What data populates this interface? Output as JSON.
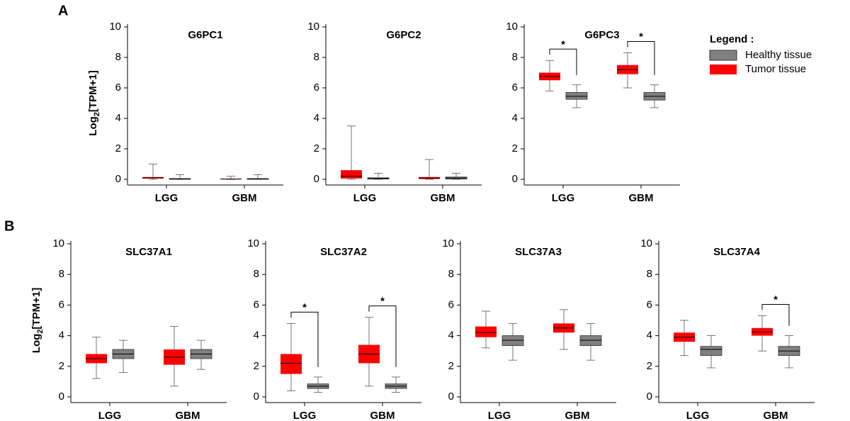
{
  "panel_labels": [
    "A",
    "B"
  ],
  "legend": {
    "title": "Legend :"
  },
  "chart_data": [
    {
      "type": "box",
      "title": "G6PC1",
      "ylabel": "Log2[TPM+1]",
      "categories": [
        "LGG",
        "GBM"
      ],
      "ylim": [
        0,
        10
      ],
      "yticks": [
        0,
        2,
        4,
        6,
        8,
        10
      ],
      "series": [
        {
          "name": "Tumor tissue",
          "color": "#ff0000",
          "values": [
            {
              "min": 0,
              "q1": 0.05,
              "median": 0.1,
              "q3": 0.15,
              "max": 1.0
            },
            {
              "min": 0,
              "q1": 0.01,
              "median": 0.02,
              "q3": 0.05,
              "max": 0.2
            }
          ]
        },
        {
          "name": "Healthy tissue",
          "color": "#808080",
          "values": [
            {
              "min": 0,
              "q1": 0.01,
              "median": 0.02,
              "q3": 0.05,
              "max": 0.3
            },
            {
              "min": 0,
              "q1": 0.01,
              "median": 0.02,
              "q3": 0.05,
              "max": 0.3
            }
          ]
        }
      ],
      "annotations": []
    },
    {
      "type": "box",
      "title": "G6PC2",
      "categories": [
        "LGG",
        "GBM"
      ],
      "ylim": [
        0,
        10
      ],
      "yticks": [
        0,
        2,
        4,
        6,
        8,
        10
      ],
      "series": [
        {
          "name": "Tumor tissue",
          "color": "#ff0000",
          "values": [
            {
              "min": 0,
              "q1": 0.05,
              "median": 0.2,
              "q3": 0.6,
              "max": 3.5
            },
            {
              "min": 0,
              "q1": 0.02,
              "median": 0.08,
              "q3": 0.15,
              "max": 1.3
            }
          ]
        },
        {
          "name": "Healthy tissue",
          "color": "#808080",
          "values": [
            {
              "min": 0,
              "q1": 0.02,
              "median": 0.05,
              "q3": 0.1,
              "max": 0.4
            },
            {
              "min": 0,
              "q1": 0.02,
              "median": 0.08,
              "q3": 0.15,
              "max": 0.4
            }
          ]
        }
      ],
      "annotations": []
    },
    {
      "type": "box",
      "title": "G6PC3",
      "categories": [
        "LGG",
        "GBM"
      ],
      "ylim": [
        0,
        10
      ],
      "yticks": [
        0,
        2,
        4,
        6,
        8,
        10
      ],
      "series": [
        {
          "name": "Tumor tissue",
          "color": "#ff0000",
          "values": [
            {
              "min": 5.8,
              "q1": 6.5,
              "median": 6.75,
              "q3": 7.0,
              "max": 7.8
            },
            {
              "min": 6.0,
              "q1": 6.9,
              "median": 7.2,
              "q3": 7.5,
              "max": 8.3
            }
          ]
        },
        {
          "name": "Healthy tissue",
          "color": "#808080",
          "values": [
            {
              "min": 4.7,
              "q1": 5.25,
              "median": 5.45,
              "q3": 5.7,
              "max": 6.2
            },
            {
              "min": 4.7,
              "q1": 5.2,
              "median": 5.45,
              "q3": 5.7,
              "max": 6.2
            }
          ]
        }
      ],
      "annotations": [
        {
          "x": "LGG",
          "text": "*"
        },
        {
          "x": "GBM",
          "text": "*"
        }
      ]
    },
    {
      "type": "box",
      "title": "SLC37A1",
      "ylabel": "Log2[TPM+1]",
      "categories": [
        "LGG",
        "GBM"
      ],
      "ylim": [
        0,
        10
      ],
      "yticks": [
        0,
        2,
        4,
        6,
        8,
        10
      ],
      "series": [
        {
          "name": "Tumor tissue",
          "color": "#ff0000",
          "values": [
            {
              "min": 1.2,
              "q1": 2.2,
              "median": 2.5,
              "q3": 2.8,
              "max": 3.9
            },
            {
              "min": 0.7,
              "q1": 2.1,
              "median": 2.6,
              "q3": 3.1,
              "max": 4.6
            }
          ]
        },
        {
          "name": "Healthy tissue",
          "color": "#808080",
          "values": [
            {
              "min": 1.6,
              "q1": 2.5,
              "median": 2.8,
              "q3": 3.1,
              "max": 3.7
            },
            {
              "min": 1.8,
              "q1": 2.5,
              "median": 2.8,
              "q3": 3.1,
              "max": 3.7
            }
          ]
        }
      ],
      "annotations": []
    },
    {
      "type": "box",
      "title": "SLC37A2",
      "categories": [
        "LGG",
        "GBM"
      ],
      "ylim": [
        0,
        10
      ],
      "yticks": [
        0,
        2,
        4,
        6,
        8,
        10
      ],
      "series": [
        {
          "name": "Tumor tissue",
          "color": "#ff0000",
          "values": [
            {
              "min": 0.4,
              "q1": 1.5,
              "median": 2.2,
              "q3": 2.8,
              "max": 4.8
            },
            {
              "min": 0.7,
              "q1": 2.2,
              "median": 2.8,
              "q3": 3.4,
              "max": 5.2
            }
          ]
        },
        {
          "name": "Healthy tissue",
          "color": "#808080",
          "values": [
            {
              "min": 0.3,
              "q1": 0.55,
              "median": 0.7,
              "q3": 0.85,
              "max": 1.3
            },
            {
              "min": 0.3,
              "q1": 0.55,
              "median": 0.7,
              "q3": 0.85,
              "max": 1.3
            }
          ]
        }
      ],
      "annotations": [
        {
          "x": "LGG",
          "text": "*"
        },
        {
          "x": "GBM",
          "text": "*"
        }
      ]
    },
    {
      "type": "box",
      "title": "SLC37A3",
      "categories": [
        "LGG",
        "GBM"
      ],
      "ylim": [
        0,
        10
      ],
      "yticks": [
        0,
        2,
        4,
        6,
        8,
        10
      ],
      "series": [
        {
          "name": "Tumor tissue",
          "color": "#ff0000",
          "values": [
            {
              "min": 3.2,
              "q1": 3.9,
              "median": 4.2,
              "q3": 4.6,
              "max": 5.6
            },
            {
              "min": 3.1,
              "q1": 4.2,
              "median": 4.5,
              "q3": 4.8,
              "max": 5.7
            }
          ]
        },
        {
          "name": "Healthy tissue",
          "color": "#808080",
          "values": [
            {
              "min": 2.4,
              "q1": 3.35,
              "median": 3.7,
              "q3": 4.0,
              "max": 4.8
            },
            {
              "min": 2.4,
              "q1": 3.35,
              "median": 3.7,
              "q3": 4.0,
              "max": 4.8
            }
          ]
        }
      ],
      "annotations": []
    },
    {
      "type": "box",
      "title": "SLC37A4",
      "categories": [
        "LGG",
        "GBM"
      ],
      "ylim": [
        0,
        10
      ],
      "yticks": [
        0,
        2,
        4,
        6,
        8,
        10
      ],
      "series": [
        {
          "name": "Tumor tissue",
          "color": "#ff0000",
          "values": [
            {
              "min": 2.7,
              "q1": 3.6,
              "median": 3.9,
              "q3": 4.2,
              "max": 5.0
            },
            {
              "min": 3.0,
              "q1": 4.0,
              "median": 4.25,
              "q3": 4.5,
              "max": 5.3
            }
          ]
        },
        {
          "name": "Healthy tissue",
          "color": "#808080",
          "values": [
            {
              "min": 1.9,
              "q1": 2.7,
              "median": 3.1,
              "q3": 3.3,
              "max": 4.0
            },
            {
              "min": 1.9,
              "q1": 2.7,
              "median": 3.0,
              "q3": 3.3,
              "max": 4.0
            }
          ]
        }
      ],
      "annotations": [
        {
          "x": "GBM",
          "text": "*"
        }
      ]
    }
  ]
}
